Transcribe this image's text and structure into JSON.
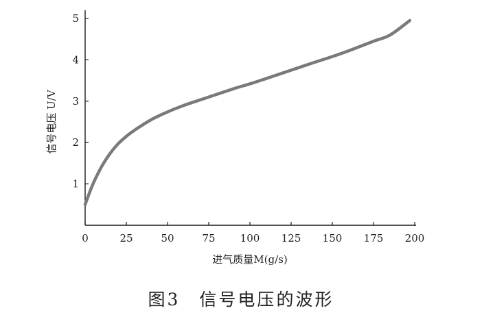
{
  "caption": "图3　信号电压的波形",
  "chart_data": {
    "type": "line",
    "title": "",
    "xlabel": "进气质量M(g/s)",
    "ylabel": "信号电压 U/V",
    "xlim": [
      0,
      200
    ],
    "ylim": [
      0,
      5
    ],
    "xticks": [
      0,
      25,
      50,
      75,
      100,
      125,
      150,
      175,
      200
    ],
    "yticks": [
      1,
      2,
      3,
      4,
      5
    ],
    "grid": false,
    "colors": {
      "line": "#7a7a7a",
      "axis": "#1a1a1a"
    },
    "series": [
      {
        "x": [
          0,
          2,
          5,
          10,
          15,
          20,
          25,
          30,
          40,
          50,
          60,
          75,
          90,
          100,
          110,
          125,
          140,
          150,
          160,
          175,
          185,
          197
        ],
        "y": [
          0.5,
          0.72,
          1.02,
          1.42,
          1.73,
          1.97,
          2.15,
          2.3,
          2.55,
          2.74,
          2.9,
          3.1,
          3.3,
          3.42,
          3.55,
          3.75,
          3.95,
          4.08,
          4.22,
          4.45,
          4.6,
          4.95
        ]
      }
    ]
  }
}
